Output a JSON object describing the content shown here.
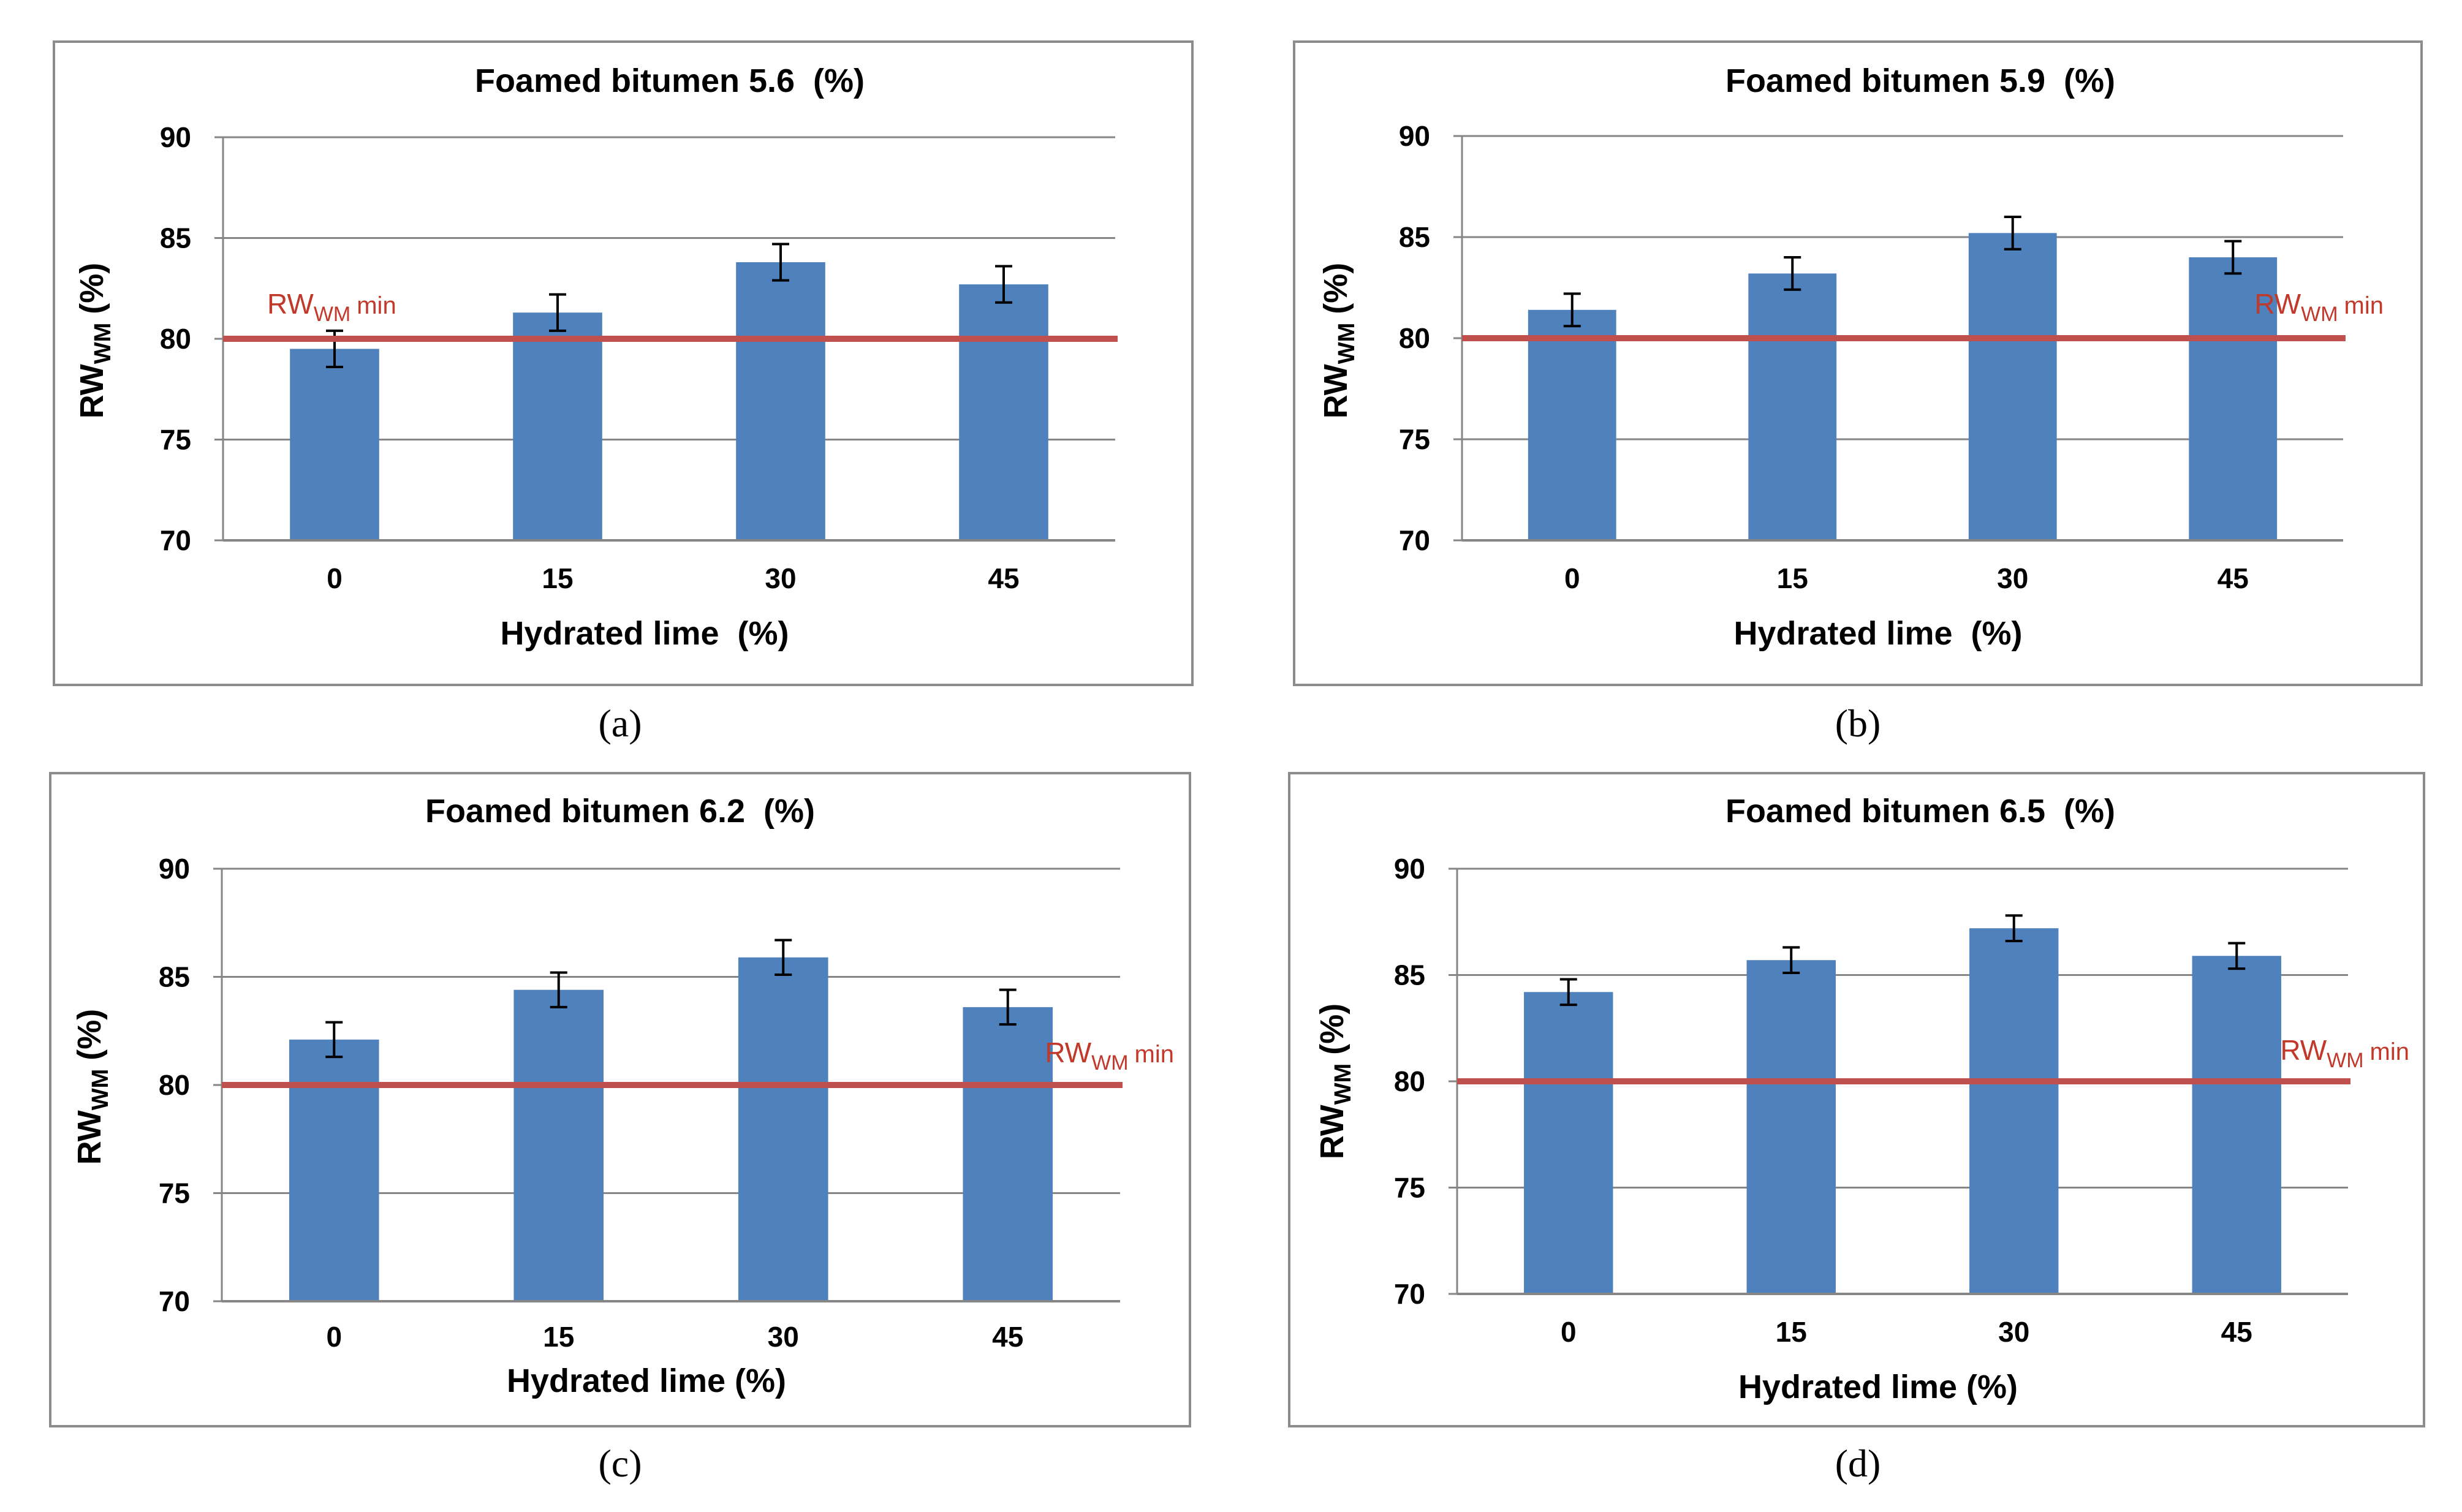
{
  "colors": {
    "bar": "#4f81bd",
    "reference_line": "#c0504d",
    "reference_text": "#c0392b",
    "gridline": "#868686",
    "frame": "#8c8c8c",
    "error_bar": "#000000",
    "text": "#000000"
  },
  "chart_data": [
    {
      "type": "bar",
      "panel_caption": "(a)",
      "title": "Foamed bitumen 5.6  (%)",
      "xlabel": "Hydrated lime  (%)",
      "ylabel_main": "RW",
      "ylabel_sub": "WM",
      "ylabel_unit": "(%)",
      "categories": [
        "0",
        "15",
        "30",
        "45"
      ],
      "values": [
        79.5,
        81.3,
        83.8,
        82.7
      ],
      "errors": [
        0.9,
        0.9,
        0.9,
        0.9
      ],
      "ylim": [
        70,
        90
      ],
      "yticks": [
        "70",
        "75",
        "80",
        "85",
        "90"
      ],
      "grid": true,
      "reference": {
        "value": 80,
        "label_main": "RW",
        "label_sub": "WM",
        "label_suffix": "min",
        "label_position": "left"
      }
    },
    {
      "type": "bar",
      "panel_caption": "(b)",
      "title": "Foamed bitumen 5.9  (%)",
      "xlabel": "Hydrated lime  (%)",
      "ylabel_main": "RW",
      "ylabel_sub": "WM",
      "ylabel_unit": "(%)",
      "categories": [
        "0",
        "15",
        "30",
        "45"
      ],
      "values": [
        81.4,
        83.2,
        85.2,
        84.0
      ],
      "errors": [
        0.8,
        0.8,
        0.8,
        0.8
      ],
      "ylim": [
        70,
        90
      ],
      "yticks": [
        "70",
        "75",
        "80",
        "85",
        "90"
      ],
      "grid": true,
      "reference": {
        "value": 80,
        "label_main": "RW",
        "label_sub": "WM",
        "label_suffix": "min",
        "label_position": "right"
      }
    },
    {
      "type": "bar",
      "panel_caption": "(c)",
      "title": "Foamed bitumen 6.2  (%)",
      "xlabel": "Hydrated lime (%)",
      "ylabel_main": "RW",
      "ylabel_sub": "WM",
      "ylabel_unit": "(%)",
      "categories": [
        "0",
        "15",
        "30",
        "45"
      ],
      "values": [
        82.1,
        84.4,
        85.9,
        83.6
      ],
      "errors": [
        0.8,
        0.8,
        0.8,
        0.8
      ],
      "ylim": [
        70,
        90
      ],
      "yticks": [
        "70",
        "75",
        "80",
        "85",
        "90"
      ],
      "grid": true,
      "reference": {
        "value": 80,
        "label_main": "RW",
        "label_sub": "WM",
        "label_suffix": "min",
        "label_position": "right"
      }
    },
    {
      "type": "bar",
      "panel_caption": "(d)",
      "title": "Foamed bitumen 6.5  (%)",
      "xlabel": "Hydrated lime (%)",
      "ylabel_main": "RW",
      "ylabel_sub": "WM",
      "ylabel_unit": "(%)",
      "categories": [
        "0",
        "15",
        "30",
        "45"
      ],
      "values": [
        84.2,
        85.7,
        87.2,
        85.9
      ],
      "errors": [
        0.6,
        0.6,
        0.6,
        0.6
      ],
      "ylim": [
        70,
        90
      ],
      "yticks": [
        "70",
        "75",
        "80",
        "85",
        "90"
      ],
      "grid": true,
      "reference": {
        "value": 80,
        "label_main": "RW",
        "label_sub": "WM",
        "label_suffix": "min",
        "label_position": "right"
      }
    }
  ]
}
